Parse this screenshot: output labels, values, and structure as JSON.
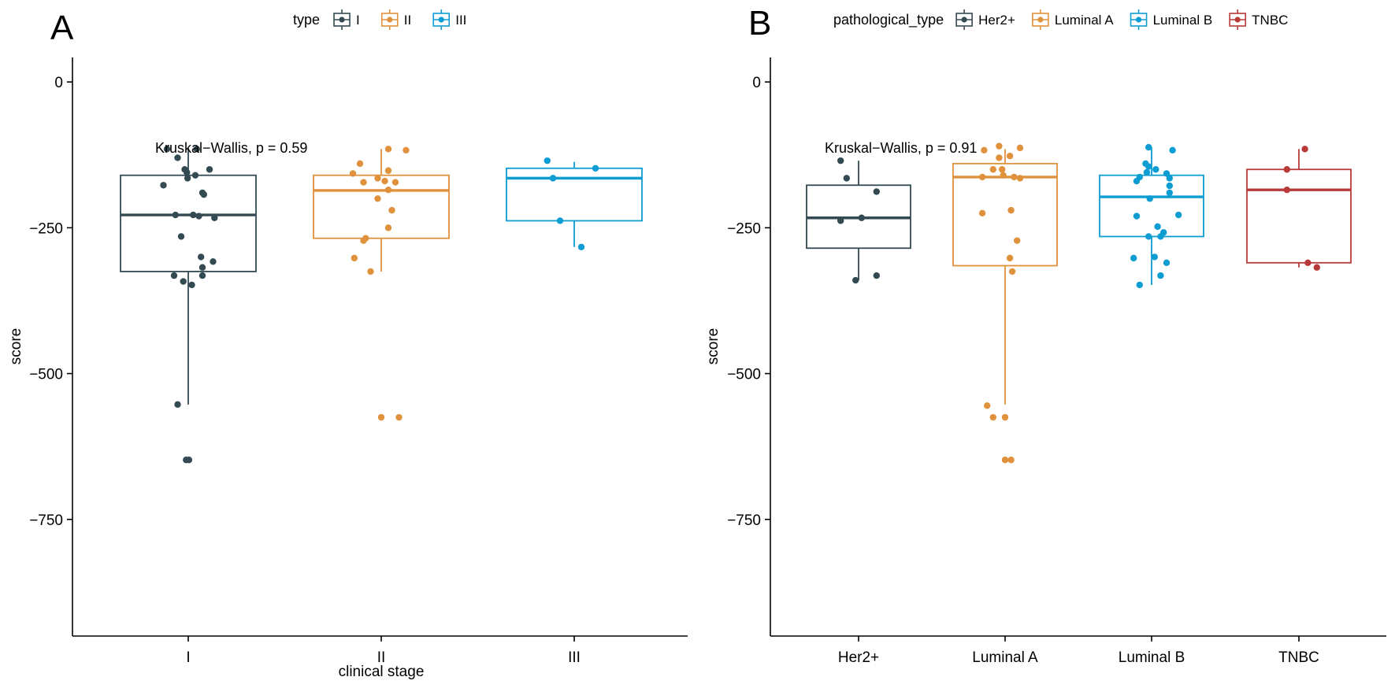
{
  "chart_data": [
    {
      "type": "box",
      "panel_tag": "A",
      "xlabel": "clinical stage",
      "ylabel": "score",
      "ylim": [
        -950,
        42
      ],
      "y_ticks": [
        0,
        -250,
        -500,
        -750
      ],
      "y_tick_labels": [
        "0",
        "−250",
        "−500",
        "−750"
      ],
      "categories": [
        "I",
        "II",
        "III"
      ],
      "legend": {
        "title": "type",
        "position": "top",
        "entries": [
          "I",
          "II",
          "III"
        ]
      },
      "grid": false,
      "annotation": {
        "text": "Kruskal−Wallis, p = 0.59",
        "y": -113
      },
      "series": [
        {
          "name": "I",
          "color": "#334a52",
          "box": {
            "whisker_low": -553,
            "q1": -325,
            "median": -228,
            "q3": -160,
            "whisker_high": -113
          },
          "points": [
            [
              -0.3,
              -115
            ],
            [
              0.12,
              -115
            ],
            [
              -0.15,
              -130
            ],
            [
              -0.05,
              -150
            ],
            [
              0.3,
              -150
            ],
            [
              -0.02,
              -155
            ],
            [
              0.1,
              -160
            ],
            [
              -0.01,
              -165
            ],
            [
              -0.35,
              -177
            ],
            [
              0.2,
              -190
            ],
            [
              0.22,
              -193
            ],
            [
              -0.18,
              -228
            ],
            [
              0.07,
              -228
            ],
            [
              0.15,
              -230
            ],
            [
              0.37,
              -233
            ],
            [
              -0.1,
              -265
            ],
            [
              0.18,
              -300
            ],
            [
              0.35,
              -308
            ],
            [
              0.2,
              -318
            ],
            [
              -0.2,
              -332
            ],
            [
              0.2,
              -332
            ],
            [
              -0.07,
              -342
            ],
            [
              0.05,
              -348
            ],
            [
              -0.15,
              -553
            ],
            [
              -0.03,
              -648
            ],
            [
              0.01,
              -648
            ]
          ]
        },
        {
          "name": "II",
          "color": "#e0913c",
          "box": {
            "whisker_low": -325,
            "q1": -268,
            "median": -186,
            "q3": -160,
            "whisker_high": -115
          },
          "points": [
            [
              0.1,
              -115
            ],
            [
              0.35,
              -117
            ],
            [
              -0.3,
              -140
            ],
            [
              -0.4,
              -157
            ],
            [
              0.1,
              -152
            ],
            [
              -0.05,
              -165
            ],
            [
              0.05,
              -170
            ],
            [
              0.2,
              -172
            ],
            [
              -0.25,
              -172
            ],
            [
              0.1,
              -185
            ],
            [
              -0.05,
              -200
            ],
            [
              0.15,
              -220
            ],
            [
              0.1,
              -250
            ],
            [
              -0.22,
              -268
            ],
            [
              -0.25,
              -272
            ],
            [
              -0.38,
              -302
            ],
            [
              -0.15,
              -325
            ],
            [
              0.0,
              -575
            ],
            [
              0.25,
              -575
            ]
          ]
        },
        {
          "name": "III",
          "color": "#0e9dd3",
          "box": {
            "whisker_low": -283,
            "q1": -238,
            "median": -165,
            "q3": -148,
            "whisker_high": -137
          },
          "points": [
            [
              -0.38,
              -135
            ],
            [
              0.3,
              -148
            ],
            [
              -0.3,
              -165
            ],
            [
              -0.2,
              -238
            ],
            [
              0.1,
              -283
            ]
          ]
        }
      ]
    },
    {
      "type": "box",
      "panel_tag": "B",
      "xlabel": "",
      "ylabel": "score",
      "ylim": [
        -950,
        42
      ],
      "y_ticks": [
        0,
        -250,
        -500,
        -750
      ],
      "y_tick_labels": [
        "0",
        "−250",
        "−500",
        "−750"
      ],
      "categories": [
        "Her2+",
        "Luminal A",
        "Luminal B",
        "TNBC"
      ],
      "legend": {
        "title": "pathological_type",
        "position": "top",
        "entries": [
          "Her2+",
          "Luminal A",
          "Luminal B",
          "TNBC"
        ]
      },
      "grid": false,
      "annotation": {
        "text": "Kruskal−Wallis, p = 0.91",
        "y": -113
      },
      "series": [
        {
          "name": "Her2+",
          "color": "#334a52",
          "box": {
            "whisker_low": -340,
            "q1": -285,
            "median": -233,
            "q3": -177,
            "whisker_high": -135
          },
          "points": [
            [
              -0.3,
              -135
            ],
            [
              -0.2,
              -165
            ],
            [
              0.3,
              -188
            ],
            [
              0.05,
              -233
            ],
            [
              -0.3,
              -238
            ],
            [
              0.3,
              -332
            ],
            [
              -0.05,
              -340
            ]
          ]
        },
        {
          "name": "Luminal A",
          "color": "#e0913c",
          "box": {
            "whisker_low": -553,
            "q1": -315,
            "median": -163,
            "q3": -140,
            "whisker_high": -115
          },
          "points": [
            [
              -0.1,
              -110
            ],
            [
              0.25,
              -113
            ],
            [
              -0.35,
              -117
            ],
            [
              0.08,
              -127
            ],
            [
              -0.1,
              -130
            ],
            [
              -0.2,
              -150
            ],
            [
              -0.05,
              -150
            ],
            [
              -0.38,
              -163
            ],
            [
              -0.03,
              -160
            ],
            [
              0.15,
              -163
            ],
            [
              0.25,
              -165
            ],
            [
              -0.38,
              -225
            ],
            [
              0.1,
              -220
            ],
            [
              0.2,
              -272
            ],
            [
              0.08,
              -302
            ],
            [
              0.12,
              -325
            ],
            [
              -0.3,
              -555
            ],
            [
              -0.2,
              -575
            ],
            [
              0.0,
              -575
            ],
            [
              0.0,
              -648
            ],
            [
              0.1,
              -648
            ]
          ]
        },
        {
          "name": "Luminal B",
          "color": "#0e9dd3",
          "box": {
            "whisker_low": -348,
            "q1": -265,
            "median": -197,
            "q3": -160,
            "whisker_high": -112
          },
          "points": [
            [
              -0.05,
              -112
            ],
            [
              0.35,
              -117
            ],
            [
              -0.1,
              -140
            ],
            [
              -0.05,
              -145
            ],
            [
              -0.08,
              -155
            ],
            [
              0.07,
              -150
            ],
            [
              0.25,
              -157
            ],
            [
              -0.2,
              -163
            ],
            [
              -0.25,
              -170
            ],
            [
              0.3,
              -165
            ],
            [
              0.3,
              -178
            ],
            [
              -0.03,
              -200
            ],
            [
              0.3,
              -190
            ],
            [
              0.45,
              -228
            ],
            [
              -0.25,
              -230
            ],
            [
              0.1,
              -248
            ],
            [
              0.2,
              -258
            ],
            [
              -0.05,
              -265
            ],
            [
              0.15,
              -265
            ],
            [
              -0.3,
              -302
            ],
            [
              0.05,
              -300
            ],
            [
              0.25,
              -310
            ],
            [
              0.15,
              -332
            ],
            [
              -0.2,
              -348
            ]
          ]
        },
        {
          "name": "TNBC",
          "color": "#b83a38",
          "box": {
            "whisker_low": -318,
            "q1": -310,
            "median": -185,
            "q3": -150,
            "whisker_high": -115
          },
          "points": [
            [
              0.1,
              -115
            ],
            [
              -0.2,
              -150
            ],
            [
              -0.2,
              -185
            ],
            [
              0.15,
              -310
            ],
            [
              0.3,
              -318
            ]
          ]
        }
      ]
    }
  ]
}
